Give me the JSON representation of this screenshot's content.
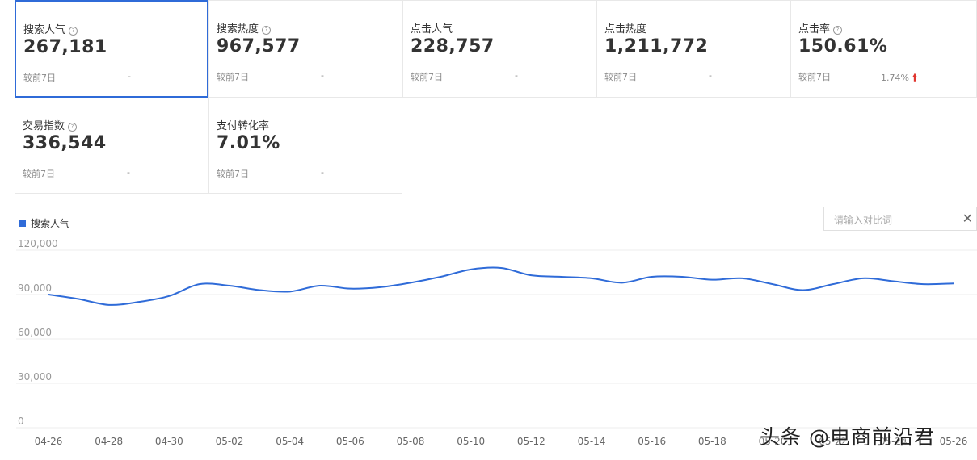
{
  "metrics": [
    {
      "label": "搜索人气",
      "help": true,
      "value": "267,181",
      "compare_label": "较前7日",
      "compare_value": "-",
      "trend": ""
    },
    {
      "label": "搜索热度",
      "help": true,
      "value": "967,577",
      "compare_label": "较前7日",
      "compare_value": "-",
      "trend": ""
    },
    {
      "label": "点击人气",
      "help": false,
      "value": "228,757",
      "compare_label": "较前7日",
      "compare_value": "-",
      "trend": ""
    },
    {
      "label": "点击热度",
      "help": false,
      "value": "1,211,772",
      "compare_label": "较前7日",
      "compare_value": "-",
      "trend": ""
    },
    {
      "label": "点击率",
      "help": true,
      "value": "150.61%",
      "compare_label": "较前7日",
      "compare_value": "1.74%",
      "trend": "up"
    },
    {
      "label": "交易指数",
      "help": true,
      "value": "336,544",
      "compare_label": "较前7日",
      "compare_value": "-",
      "trend": ""
    },
    {
      "label": "支付转化率",
      "help": false,
      "value": "7.01%",
      "compare_label": "较前7日",
      "compare_value": "-",
      "trend": ""
    }
  ],
  "compare": {
    "placeholder": "请输入对比词",
    "close_icon": "close-icon"
  },
  "colors": {
    "accent": "#2f6bd8",
    "up": "#e0362f"
  },
  "watermark": "头条 @电商前沿君",
  "chart_data": {
    "type": "line",
    "series": [
      {
        "name": "搜索人气",
        "values": [
          90000,
          87000,
          83000,
          85000,
          89000,
          97000,
          96000,
          93000,
          92000,
          96000,
          94000,
          95000,
          98000,
          102000,
          107000,
          108000,
          103000,
          102000,
          101000,
          98000,
          102000,
          102000,
          100000,
          101000,
          97000,
          93000,
          97000,
          101000,
          99000,
          97000,
          97500
        ]
      }
    ],
    "x": [
      "04-26",
      "04-27",
      "04-28",
      "04-29",
      "04-30",
      "05-01",
      "05-02",
      "05-03",
      "05-04",
      "05-05",
      "05-06",
      "05-07",
      "05-08",
      "05-09",
      "05-10",
      "05-11",
      "05-12",
      "05-13",
      "05-14",
      "05-15",
      "05-16",
      "05-17",
      "05-18",
      "05-19",
      "05-20",
      "05-21",
      "05-22",
      "05-23",
      "05-24",
      "05-25",
      "05-26"
    ],
    "tick_labels": [
      "04-26",
      "04-28",
      "04-30",
      "05-02",
      "05-04",
      "05-06",
      "05-08",
      "05-10",
      "05-12",
      "05-14",
      "05-16",
      "05-18",
      "05-20",
      "05-22",
      "05-24",
      "05-26"
    ],
    "y_ticks": [
      "120,000",
      "90,000",
      "60,000",
      "30,000",
      "0"
    ],
    "ylim": [
      0,
      120000
    ],
    "grid": true,
    "legend": "top-left"
  }
}
